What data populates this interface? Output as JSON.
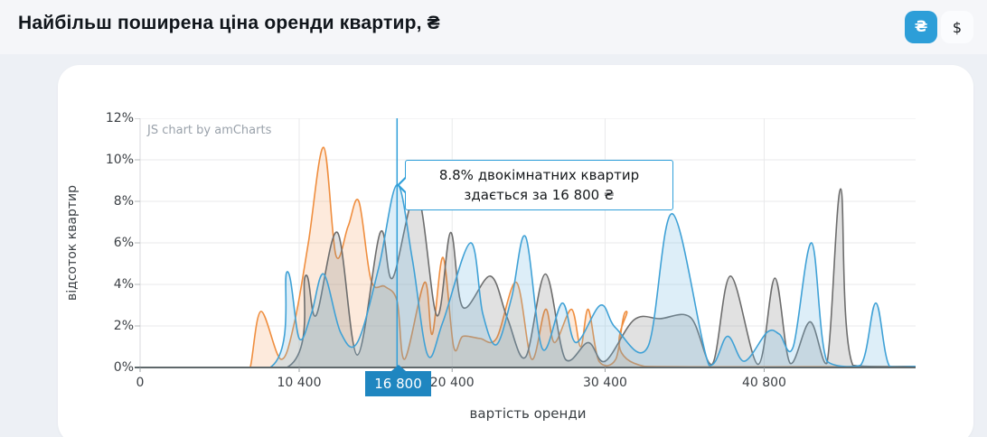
{
  "header": {
    "title": "Найбільш поширена ціна оренди квартир, ₴",
    "currency": {
      "uah": "₴",
      "usd": "$",
      "active": "₴"
    }
  },
  "watermark": "JS chart by amCharts",
  "tooltip": {
    "line1": "8.8% двокімнатних квартир",
    "line2": "здається за 16 800 ₴"
  },
  "cursor": {
    "x_value": 16800,
    "x_label": "16 800",
    "y_value_pct": 8.8
  },
  "colors": {
    "accent_blue": "#2d9ed8",
    "cursor_blue": "#2f9fd9",
    "cursor_label_bg": "#1f86c0",
    "axis_line": "#5f686b",
    "grid": "#e9eaeb"
  },
  "chart_data": {
    "type": "area",
    "title": "Найбільш поширена ціна оренди квартир, ₴",
    "xlabel": "вартість оренди",
    "ylabel": "відсоток квартир",
    "xlim": [
      0,
      50700
    ],
    "ylim": [
      0,
      12
    ],
    "grid": true,
    "legend": "none",
    "x_ticks": [
      {
        "value": 0,
        "label": "0"
      },
      {
        "value": 10400,
        "label": "10 400"
      },
      {
        "value": 20400,
        "label": "20 400"
      },
      {
        "value": 30400,
        "label": "30 400"
      },
      {
        "value": 40800,
        "label": "40 800"
      }
    ],
    "y_ticks": [
      "0%",
      "2%",
      "4%",
      "6%",
      "8%",
      "10%",
      "12%"
    ],
    "series": [
      {
        "id": "orange",
        "color": "#ef8e3f",
        "fill": "rgba(243,152,80,0.20)",
        "points": [
          [
            0,
            0
          ],
          [
            6800,
            0
          ],
          [
            7200,
            0
          ],
          [
            7900,
            2.7
          ],
          [
            9200,
            0.4
          ],
          [
            10100,
            2.2
          ],
          [
            11000,
            6.0
          ],
          [
            12000,
            10.6
          ],
          [
            12800,
            5.4
          ],
          [
            13600,
            6.8
          ],
          [
            14300,
            8.0
          ],
          [
            15100,
            4.2
          ],
          [
            16000,
            3.9
          ],
          [
            16800,
            3.2
          ],
          [
            17300,
            0.4
          ],
          [
            18600,
            4.1
          ],
          [
            19100,
            1.6
          ],
          [
            19800,
            5.3
          ],
          [
            20500,
            1.0
          ],
          [
            21100,
            1.5
          ],
          [
            22200,
            1.4
          ],
          [
            23300,
            1.4
          ],
          [
            24600,
            4.1
          ],
          [
            25600,
            0.4
          ],
          [
            26500,
            2.8
          ],
          [
            27100,
            1.2
          ],
          [
            28200,
            2.8
          ],
          [
            28800,
            1.0
          ],
          [
            29300,
            2.8
          ],
          [
            30000,
            0.3
          ],
          [
            31100,
            0.4
          ],
          [
            31800,
            2.7
          ],
          [
            33000,
            0.05
          ],
          [
            50700,
            0.05
          ]
        ]
      },
      {
        "id": "gray",
        "color": "#6d6d6d",
        "fill": "rgba(130,130,130,0.24)",
        "points": [
          [
            0,
            0
          ],
          [
            9600,
            0
          ],
          [
            10800,
            4.4
          ],
          [
            11500,
            2.5
          ],
          [
            12900,
            6.5
          ],
          [
            14200,
            0.6
          ],
          [
            15700,
            6.5
          ],
          [
            16500,
            4.3
          ],
          [
            18100,
            8.4
          ],
          [
            19400,
            2.5
          ],
          [
            20300,
            6.5
          ],
          [
            21100,
            2.9
          ],
          [
            22900,
            4.4
          ],
          [
            24000,
            2.4
          ],
          [
            25200,
            0.5
          ],
          [
            26500,
            4.5
          ],
          [
            27800,
            0.4
          ],
          [
            29300,
            1.2
          ],
          [
            30400,
            0.3
          ],
          [
            32300,
            2.3
          ],
          [
            34000,
            2.35
          ],
          [
            36000,
            2.4
          ],
          [
            37400,
            0.15
          ],
          [
            38600,
            4.4
          ],
          [
            40400,
            0.15
          ],
          [
            41500,
            4.3
          ],
          [
            42500,
            0.2
          ],
          [
            43800,
            2.2
          ],
          [
            44900,
            0.2
          ],
          [
            45800,
            8.6
          ],
          [
            46600,
            0.1
          ],
          [
            50700,
            0.05
          ]
        ]
      },
      {
        "id": "blue",
        "name": "двокімнатні квартири",
        "color": "#3fa1d6",
        "fill": "rgba(111,182,226,0.24)",
        "points": [
          [
            0,
            0
          ],
          [
            8500,
            0
          ],
          [
            9600,
            4.6
          ],
          [
            10400,
            1.4
          ],
          [
            11200,
            2.6
          ],
          [
            12000,
            4.5
          ],
          [
            13100,
            1.7
          ],
          [
            14200,
            1.2
          ],
          [
            15600,
            4.8
          ],
          [
            16800,
            8.8
          ],
          [
            17800,
            5.2
          ],
          [
            18800,
            0.6
          ],
          [
            19800,
            2.2
          ],
          [
            21600,
            6.0
          ],
          [
            22400,
            2.6
          ],
          [
            23300,
            1.1
          ],
          [
            24300,
            3.4
          ],
          [
            25200,
            6.3
          ],
          [
            26300,
            0.9
          ],
          [
            27600,
            3.1
          ],
          [
            28500,
            1.2
          ],
          [
            30100,
            3.0
          ],
          [
            31100,
            1.9
          ],
          [
            33200,
            1.0
          ],
          [
            34800,
            7.4
          ],
          [
            37200,
            0.1
          ],
          [
            38400,
            1.5
          ],
          [
            39500,
            0.3
          ],
          [
            41000,
            1.7
          ],
          [
            41800,
            1.6
          ],
          [
            42700,
            1.0
          ],
          [
            43900,
            6.0
          ],
          [
            44900,
            0.3
          ],
          [
            47100,
            0.1
          ],
          [
            48100,
            3.1
          ],
          [
            49000,
            0.05
          ],
          [
            50700,
            0.05
          ]
        ]
      }
    ]
  }
}
